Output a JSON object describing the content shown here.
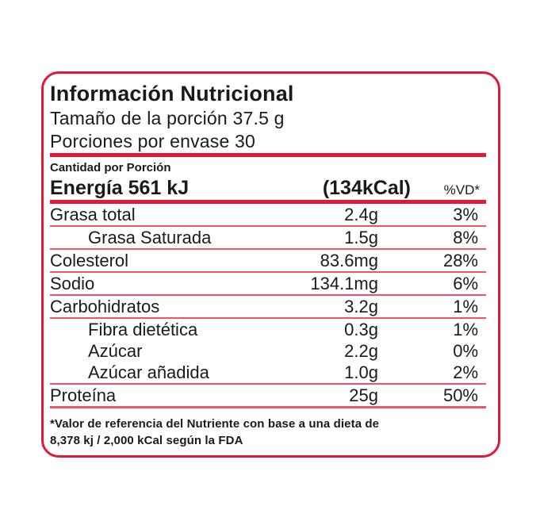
{
  "colors": {
    "accent_red": "#e31837",
    "separator_red": "#ee5566",
    "text": "#1a1a1a",
    "background": "#ffffff"
  },
  "header": {
    "title": "Información Nutricional",
    "serving_size": "Tamaño de la porción 37.5 g",
    "servings_per_container": "Porciones por envase 30"
  },
  "table": {
    "amount_per_serving_label": "Cantidad por Porción",
    "energy": {
      "label": "Energía 561 kJ",
      "kcal": "(134kCal)",
      "dv_header": "%VD*"
    },
    "rows": [
      {
        "label": "Grasa total",
        "amount": "2.4g",
        "dv": "3%"
      },
      {
        "label": "Grasa Saturada",
        "amount": "1.5g",
        "dv": "8%"
      },
      {
        "label": "Colesterol",
        "amount": "83.6mg",
        "dv": "28%"
      },
      {
        "label": "Sodio",
        "amount": "134.1mg",
        "dv": "6%"
      },
      {
        "label": "Carbohidratos",
        "amount": "3.2g",
        "dv": "1%"
      },
      {
        "label": "Fibra dietética",
        "amount": "0.3g",
        "dv": "1%"
      },
      {
        "label": "Azúcar",
        "amount": "2.2g",
        "dv": "0%"
      },
      {
        "label": "Azúcar añadida",
        "amount": "1.0g",
        "dv": "2%"
      },
      {
        "label": "Proteína",
        "amount": "25g",
        "dv": "50%"
      }
    ]
  },
  "footnote": {
    "line1": "*Valor de referencia del Nutriente con base a una dieta de",
    "line2": "8,378 kj / 2,000 kCal según la FDA"
  }
}
